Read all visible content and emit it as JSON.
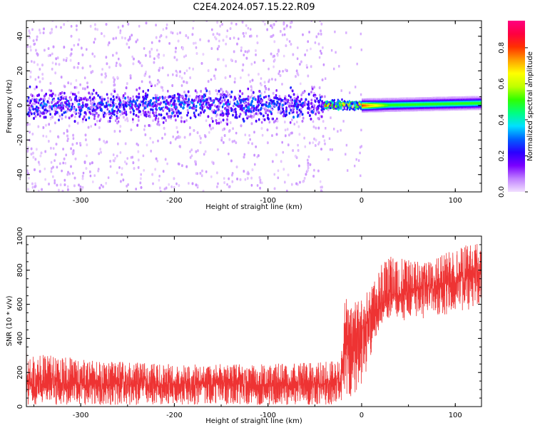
{
  "title": "C2E4.2024.057.15.22.R09",
  "colors": {
    "snr_line": "#ee3333",
    "axis": "#000000"
  },
  "chart_data": [
    {
      "type": "heatmap",
      "xlabel": "Height of straight line (km)",
      "ylabel": "Frequency (Hz)",
      "xlim": [
        -358,
        128
      ],
      "ylim": [
        -50,
        49
      ],
      "x_ticks": [
        "-300",
        "-200",
        "-100",
        "0",
        "100"
      ],
      "y_ticks": [
        "-40",
        "-20",
        "0",
        "20",
        "40"
      ],
      "grid": false,
      "colorbar": {
        "label": "Normalized spectral amplitude",
        "range": [
          0.0,
          0.95
        ],
        "ticks": [
          "0.0",
          "0.2",
          "0.4",
          "0.6",
          "0.8"
        ],
        "colormap": [
          "#f2e0ff",
          "#c080ff",
          "#7a00ff",
          "#2a00ff",
          "#0060ff",
          "#00e0ff",
          "#00ff80",
          "#30ff00",
          "#c0ff00",
          "#ffff00",
          "#ffa000",
          "#ff3000",
          "#ff0040",
          "#ff0080"
        ]
      },
      "regions": [
        {
          "name": "noise",
          "x_range": [
            -358,
            -40
          ],
          "freq_spread_hz": 50,
          "core_band_hz": 6,
          "max_amplitude": 0.3
        },
        {
          "name": "transition",
          "x_range": [
            -40,
            0
          ],
          "center_freq_hz": 0,
          "max_amplitude": 0.85
        },
        {
          "name": "signal",
          "x_range": [
            0,
            128
          ],
          "center_freq_start_hz": 0,
          "center_freq_end_hz": 1.5,
          "max_amplitude": 0.5
        }
      ]
    },
    {
      "type": "line",
      "xlabel": "Height of straight line (km)",
      "ylabel": "SNR (10 * v/v)",
      "xlim": [
        -358,
        128
      ],
      "ylim": [
        0,
        1000
      ],
      "x_ticks": [
        "-300",
        "-200",
        "-100",
        "0",
        "100"
      ],
      "y_ticks": [
        "0",
        "200",
        "400",
        "600",
        "800",
        "1000"
      ],
      "grid": false,
      "series": [
        {
          "x": [
            -358,
            -300,
            -250,
            -200,
            -150,
            -100,
            -50,
            -22,
            -18,
            -10,
            0,
            10,
            20,
            30,
            50,
            70,
            90,
            110,
            128
          ],
          "y_mean": [
            130,
            130,
            130,
            130,
            130,
            130,
            130,
            130,
            380,
            380,
            450,
            520,
            600,
            650,
            680,
            700,
            720,
            760,
            780
          ],
          "y_min": [
            10,
            10,
            10,
            10,
            10,
            10,
            10,
            10,
            60,
            60,
            120,
            300,
            480,
            520,
            500,
            520,
            540,
            560,
            600
          ],
          "y_max": [
            320,
            280,
            260,
            250,
            250,
            250,
            260,
            270,
            650,
            620,
            640,
            720,
            830,
            880,
            860,
            850,
            900,
            950,
            960
          ]
        }
      ]
    }
  ]
}
